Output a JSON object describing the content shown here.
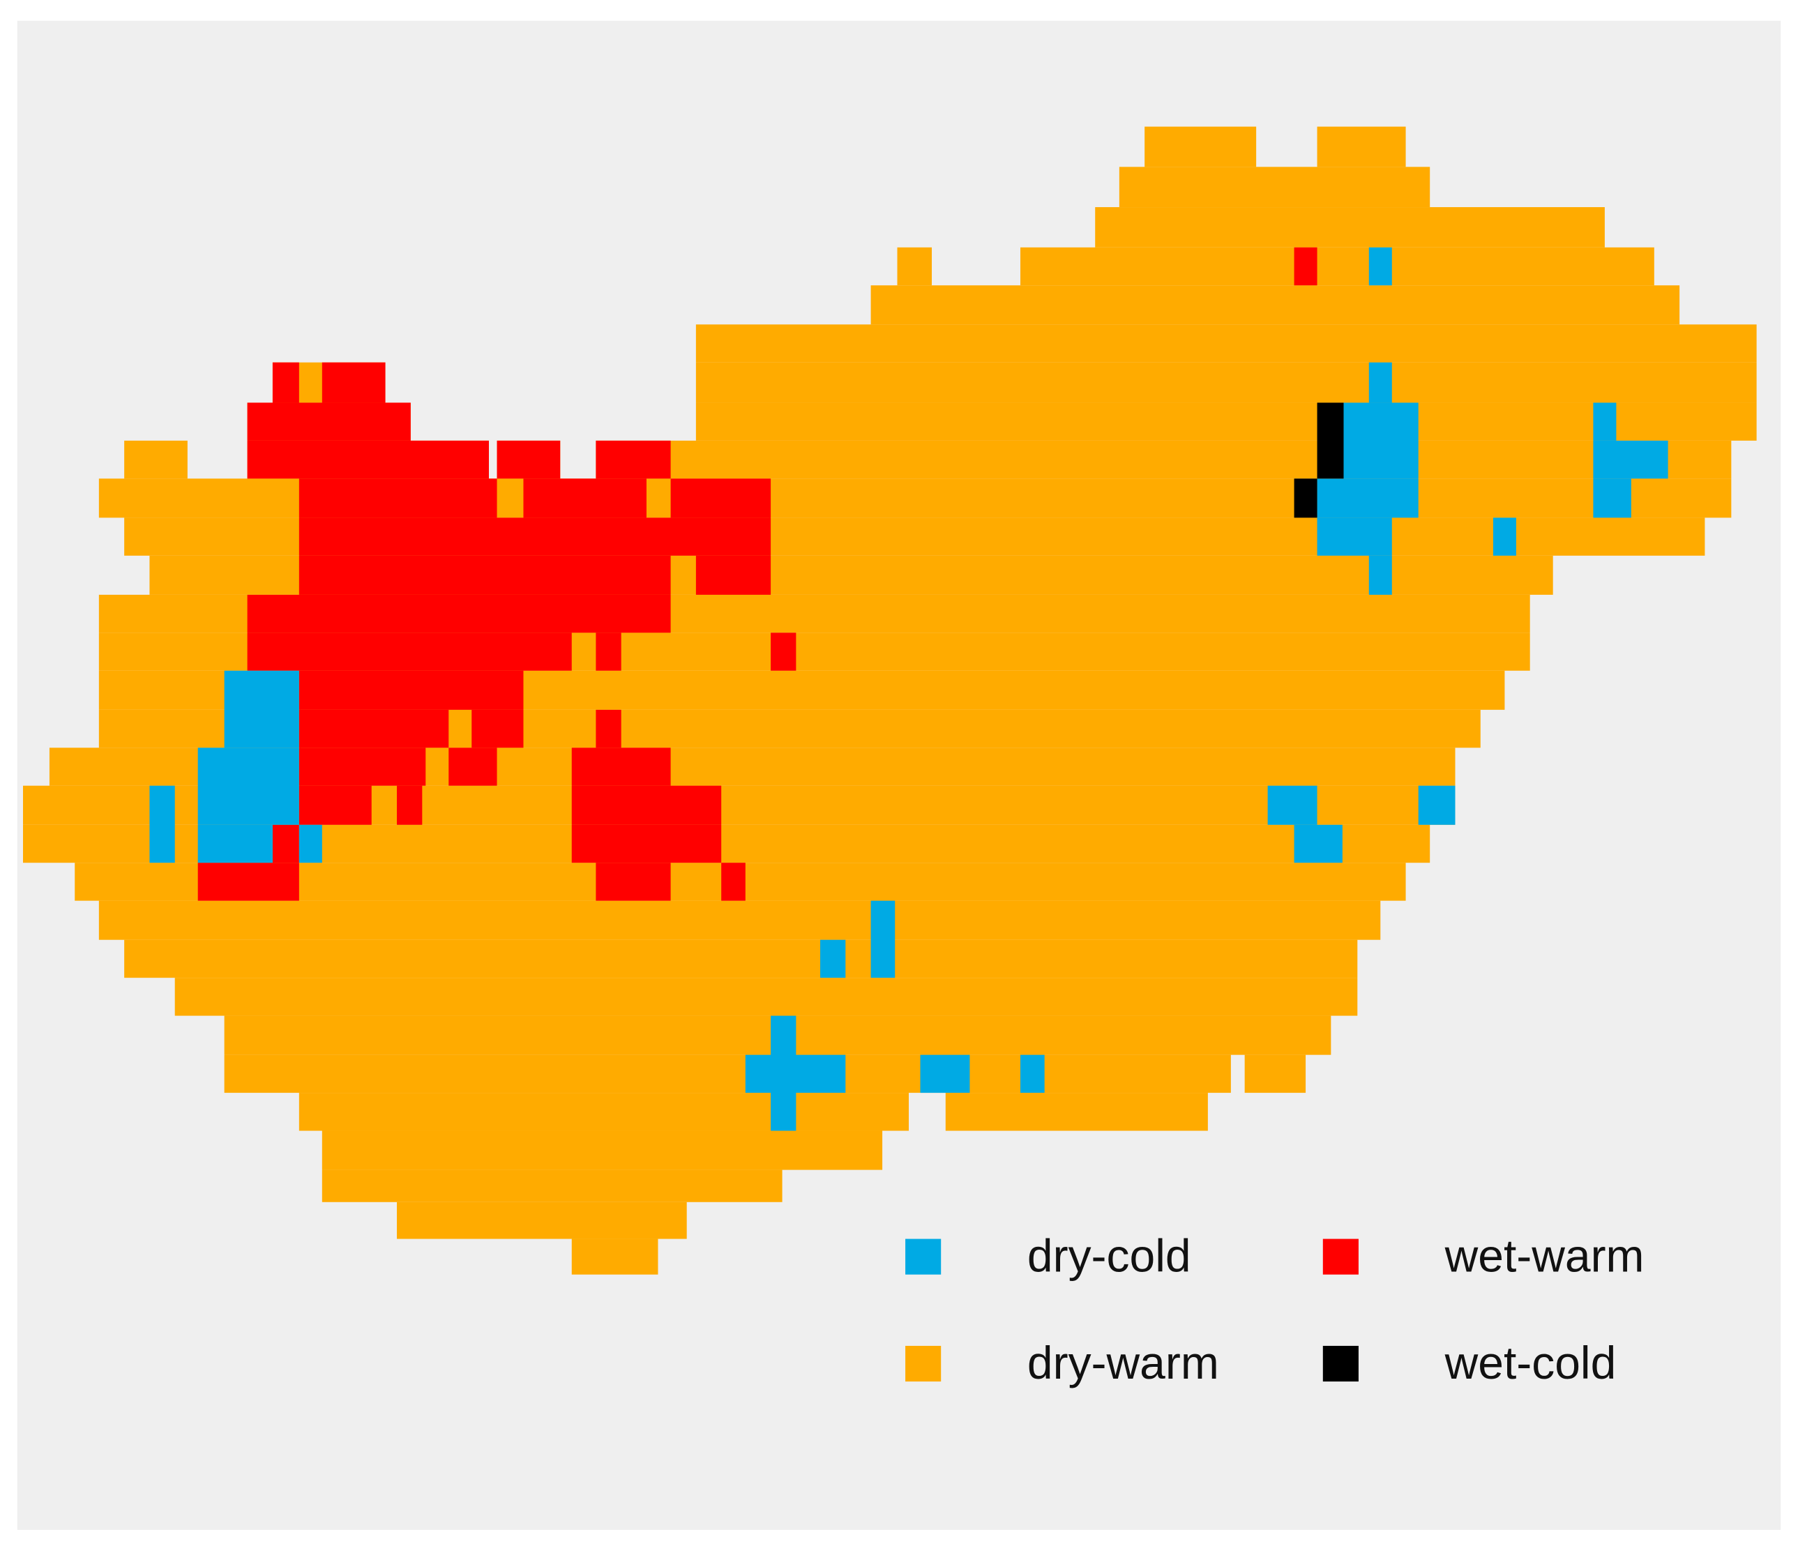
{
  "legend": {
    "items": [
      {
        "label": "dry-cold",
        "color": "#00aae4"
      },
      {
        "label": "dry-warm",
        "color": "#ffab00"
      },
      {
        "label": "wet-warm",
        "color": "#ff0000"
      },
      {
        "label": "wet-cold",
        "color": "#000000"
      }
    ]
  }
}
